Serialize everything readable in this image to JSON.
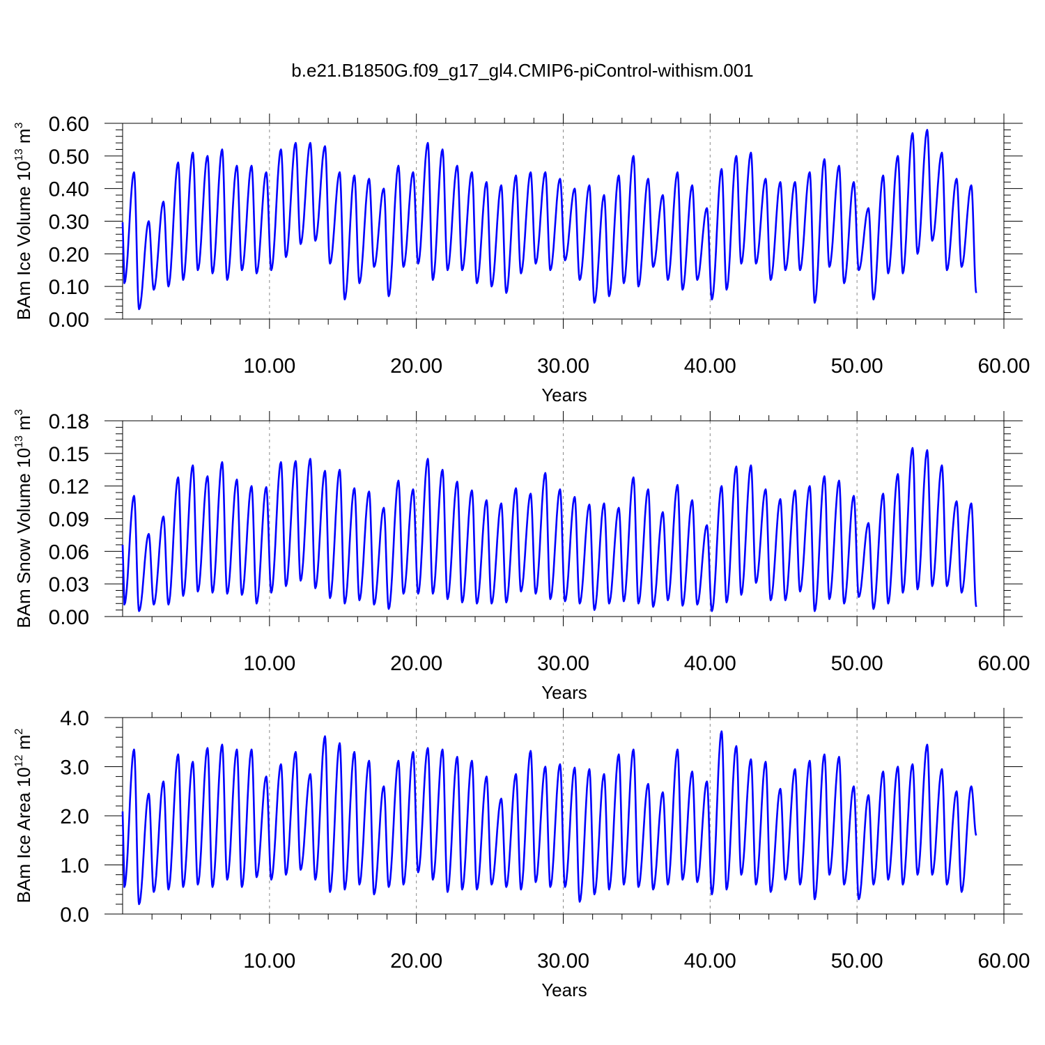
{
  "title": "b.e21.B1850G.f09_g17_gl4.CMIP6-piControl-withism.001",
  "colors": {
    "series": "#0000ff",
    "axes": "#000000",
    "grid": "#888888"
  },
  "chart_data": [
    {
      "type": "line",
      "ylabel": "BAm Ice Volume",
      "ylabel_unit_pre": " 10",
      "ylabel_unit_exp1": "13",
      "ylabel_unit_mid": " m",
      "ylabel_unit_exp2": "3",
      "xlabel": "Years",
      "xlim": [
        0,
        60
      ],
      "ylim": [
        0,
        0.6
      ],
      "yticks": [
        0,
        0.1,
        0.2,
        0.3,
        0.4,
        0.5,
        0.6
      ],
      "ytick_labels": [
        "0.00",
        "0.10",
        "0.20",
        "0.30",
        "0.40",
        "0.50",
        "0.60"
      ],
      "xticks": [
        10,
        20,
        30,
        40,
        50,
        60
      ],
      "xtick_labels": [
        "10.00",
        "20.00",
        "30.00",
        "40.00",
        "50.00",
        "60.00"
      ],
      "grid_x": true,
      "series": [
        {
          "peaks": [
            0.45,
            0.3,
            0.36,
            0.48,
            0.51,
            0.5,
            0.52,
            0.47,
            0.47,
            0.45,
            0.52,
            0.54,
            0.54,
            0.53,
            0.45,
            0.44,
            0.43,
            0.4,
            0.47,
            0.45,
            0.54,
            0.52,
            0.47,
            0.45,
            0.42,
            0.41,
            0.44,
            0.45,
            0.45,
            0.43,
            0.4,
            0.41,
            0.38,
            0.44,
            0.5,
            0.43,
            0.38,
            0.45,
            0.41,
            0.34,
            0.46,
            0.5,
            0.51,
            0.43,
            0.42,
            0.42,
            0.45,
            0.49,
            0.47,
            0.42,
            0.34,
            0.44,
            0.5,
            0.57,
            0.58,
            0.51,
            0.43,
            0.41
          ],
          "troughs": [
            0.11,
            0.03,
            0.09,
            0.1,
            0.12,
            0.15,
            0.14,
            0.12,
            0.15,
            0.14,
            0.15,
            0.19,
            0.23,
            0.24,
            0.17,
            0.06,
            0.11,
            0.16,
            0.07,
            0.16,
            0.17,
            0.12,
            0.15,
            0.15,
            0.11,
            0.1,
            0.08,
            0.14,
            0.17,
            0.15,
            0.18,
            0.12,
            0.05,
            0.07,
            0.11,
            0.1,
            0.16,
            0.12,
            0.09,
            0.12,
            0.06,
            0.09,
            0.17,
            0.17,
            0.12,
            0.15,
            0.15,
            0.05,
            0.16,
            0.11,
            0.15,
            0.06,
            0.14,
            0.14,
            0.2,
            0.24,
            0.15,
            0.16,
            0.08
          ]
        }
      ]
    },
    {
      "type": "line",
      "ylabel": "BAm Snow Volume",
      "ylabel_unit_pre": " 10",
      "ylabel_unit_exp1": "13",
      "ylabel_unit_mid": " m",
      "ylabel_unit_exp2": "3",
      "xlabel": "Years",
      "xlim": [
        0,
        60
      ],
      "ylim": [
        0,
        0.18
      ],
      "yticks": [
        0,
        0.03,
        0.06,
        0.09,
        0.12,
        0.15,
        0.18
      ],
      "ytick_labels": [
        "0.00",
        "0.03",
        "0.06",
        "0.09",
        "0.12",
        "0.15",
        "0.18"
      ],
      "xticks": [
        10,
        20,
        30,
        40,
        50,
        60
      ],
      "xtick_labels": [
        "10.00",
        "20.00",
        "30.00",
        "40.00",
        "50.00",
        "60.00"
      ],
      "grid_x": true,
      "series": [
        {
          "peaks": [
            0.111,
            0.076,
            0.092,
            0.128,
            0.139,
            0.129,
            0.142,
            0.126,
            0.12,
            0.119,
            0.142,
            0.143,
            0.145,
            0.134,
            0.135,
            0.118,
            0.115,
            0.1,
            0.125,
            0.117,
            0.145,
            0.135,
            0.124,
            0.116,
            0.107,
            0.104,
            0.118,
            0.113,
            0.132,
            0.117,
            0.11,
            0.103,
            0.104,
            0.1,
            0.128,
            0.117,
            0.096,
            0.121,
            0.107,
            0.084,
            0.12,
            0.138,
            0.139,
            0.117,
            0.108,
            0.116,
            0.12,
            0.129,
            0.125,
            0.111,
            0.086,
            0.113,
            0.131,
            0.155,
            0.153,
            0.139,
            0.106,
            0.104
          ],
          "troughs": [
            0.011,
            0.005,
            0.011,
            0.011,
            0.019,
            0.023,
            0.022,
            0.021,
            0.02,
            0.012,
            0.022,
            0.028,
            0.033,
            0.026,
            0.017,
            0.012,
            0.015,
            0.011,
            0.007,
            0.021,
            0.021,
            0.021,
            0.016,
            0.013,
            0.012,
            0.012,
            0.013,
            0.023,
            0.021,
            0.016,
            0.014,
            0.012,
            0.006,
            0.012,
            0.014,
            0.012,
            0.009,
            0.015,
            0.01,
            0.011,
            0.005,
            0.013,
            0.02,
            0.031,
            0.015,
            0.015,
            0.023,
            0.005,
            0.016,
            0.012,
            0.018,
            0.007,
            0.012,
            0.022,
            0.025,
            0.028,
            0.028,
            0.022,
            0.009
          ]
        }
      ]
    },
    {
      "type": "line",
      "ylabel": "BAm Ice Area",
      "ylabel_unit_pre": " 10",
      "ylabel_unit_exp1": "12",
      "ylabel_unit_mid": " m",
      "ylabel_unit_exp2": "2",
      "xlabel": "Years",
      "xlim": [
        0,
        60
      ],
      "ylim": [
        0,
        4
      ],
      "yticks": [
        0,
        1,
        2,
        3,
        4
      ],
      "ytick_labels": [
        "0.0",
        "1.0",
        "2.0",
        "3.0",
        "4.0"
      ],
      "xticks": [
        10,
        20,
        30,
        40,
        50,
        60
      ],
      "xtick_labels": [
        "10.00",
        "20.00",
        "30.00",
        "40.00",
        "50.00",
        "60.00"
      ],
      "grid_x": true,
      "series": [
        {
          "peaks": [
            3.35,
            2.45,
            2.7,
            3.25,
            3.1,
            3.38,
            3.45,
            3.35,
            3.35,
            2.8,
            3.05,
            3.3,
            2.85,
            3.62,
            3.48,
            3.3,
            3.12,
            2.6,
            3.12,
            3.3,
            3.38,
            3.35,
            3.2,
            3.12,
            2.8,
            2.35,
            2.85,
            3.32,
            3.0,
            3.05,
            2.98,
            2.95,
            2.85,
            3.25,
            3.35,
            2.65,
            2.48,
            3.35,
            2.9,
            2.7,
            3.72,
            3.42,
            3.15,
            3.1,
            2.55,
            2.95,
            3.12,
            3.25,
            3.2,
            2.6,
            2.42,
            2.9,
            3.0,
            3.05,
            3.45,
            2.95,
            2.5,
            2.6
          ],
          "troughs": [
            0.55,
            0.2,
            0.45,
            0.5,
            0.55,
            0.6,
            0.55,
            0.7,
            0.55,
            0.75,
            0.7,
            0.8,
            0.9,
            0.7,
            0.45,
            0.5,
            0.6,
            0.4,
            0.55,
            0.6,
            0.85,
            0.7,
            0.45,
            0.5,
            0.5,
            0.6,
            0.55,
            0.5,
            0.65,
            0.55,
            0.55,
            0.25,
            0.4,
            0.5,
            0.6,
            0.55,
            0.5,
            0.6,
            0.7,
            0.65,
            0.4,
            0.5,
            0.8,
            0.6,
            0.45,
            0.7,
            0.6,
            0.3,
            0.8,
            0.6,
            0.3,
            0.6,
            0.7,
            0.6,
            0.8,
            0.8,
            0.6,
            0.45,
            1.6
          ]
        }
      ]
    }
  ]
}
